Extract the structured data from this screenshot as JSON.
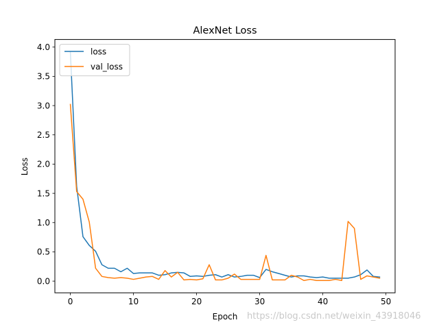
{
  "chart_data": {
    "type": "line",
    "title": "AlexNet Loss",
    "xlabel": "Epoch",
    "ylabel": "Loss",
    "xlim": [
      -2.45,
      51.45
    ],
    "ylim": [
      -0.2,
      4.13
    ],
    "xticks": [
      0,
      10,
      20,
      30,
      40,
      50
    ],
    "yticks": [
      0.0,
      0.5,
      1.0,
      1.5,
      2.0,
      2.5,
      3.0,
      3.5,
      4.0
    ],
    "legend_position": "top-left",
    "x": [
      0,
      1,
      2,
      3,
      4,
      5,
      6,
      7,
      8,
      9,
      10,
      11,
      12,
      13,
      14,
      15,
      16,
      17,
      18,
      19,
      20,
      21,
      22,
      23,
      24,
      25,
      26,
      27,
      28,
      29,
      30,
      31,
      32,
      33,
      34,
      35,
      36,
      37,
      38,
      39,
      40,
      41,
      42,
      43,
      44,
      45,
      46,
      47,
      48,
      49
    ],
    "series": [
      {
        "name": "loss",
        "color": "#1f77b4",
        "values": [
          3.92,
          1.62,
          0.76,
          0.61,
          0.51,
          0.28,
          0.22,
          0.22,
          0.16,
          0.22,
          0.13,
          0.14,
          0.14,
          0.14,
          0.1,
          0.11,
          0.14,
          0.15,
          0.14,
          0.08,
          0.09,
          0.08,
          0.1,
          0.11,
          0.07,
          0.11,
          0.07,
          0.08,
          0.1,
          0.1,
          0.06,
          0.2,
          0.16,
          0.13,
          0.1,
          0.07,
          0.09,
          0.09,
          0.07,
          0.06,
          0.07,
          0.05,
          0.05,
          0.05,
          0.05,
          0.07,
          0.11,
          0.19,
          0.08,
          0.07
        ]
      },
      {
        "name": "val_loss",
        "color": "#ff7f0e",
        "values": [
          3.02,
          1.53,
          1.4,
          1.01,
          0.22,
          0.08,
          0.06,
          0.05,
          0.06,
          0.05,
          0.03,
          0.05,
          0.07,
          0.08,
          0.03,
          0.18,
          0.07,
          0.15,
          0.02,
          0.03,
          0.02,
          0.04,
          0.28,
          0.02,
          0.02,
          0.05,
          0.12,
          0.03,
          0.03,
          0.03,
          0.03,
          0.44,
          0.02,
          0.02,
          0.02,
          0.1,
          0.07,
          0.01,
          0.03,
          0.01,
          0.01,
          0.01,
          0.03,
          0.01,
          1.02,
          0.9,
          0.03,
          0.09,
          0.07,
          0.05
        ]
      }
    ]
  },
  "watermark": "https://blog.csdn.net/weixin_43918046"
}
